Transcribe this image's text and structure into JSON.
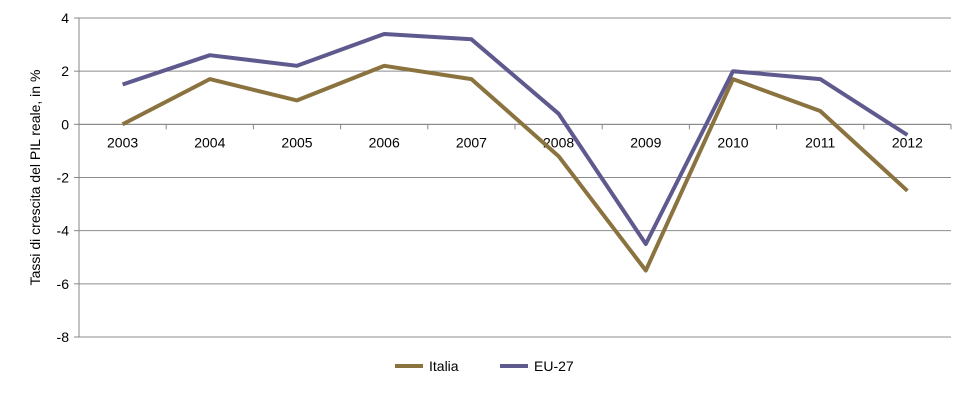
{
  "chart_data": {
    "type": "line",
    "ylabel": "Tassi di crescita del PIL reale, in %",
    "xlabel": "",
    "title": "",
    "categories": [
      "2003",
      "2004",
      "2005",
      "2006",
      "2007",
      "2008",
      "2009",
      "2010",
      "2011",
      "2012"
    ],
    "ylim": [
      -8,
      4
    ],
    "yticks": [
      4,
      2,
      0,
      -2,
      -4,
      -6,
      -8
    ],
    "grid": true,
    "legend_placement": "bottom-center",
    "series": [
      {
        "name": "Italia",
        "color": "#8B7340",
        "values": [
          0.0,
          1.7,
          0.9,
          2.2,
          1.7,
          -1.2,
          -5.5,
          1.7,
          0.5,
          -2.5
        ]
      },
      {
        "name": "EU-27",
        "color": "#5E5A8E",
        "values": [
          1.5,
          2.6,
          2.2,
          3.4,
          3.2,
          0.4,
          -4.5,
          2.0,
          1.7,
          -0.4
        ]
      }
    ]
  }
}
